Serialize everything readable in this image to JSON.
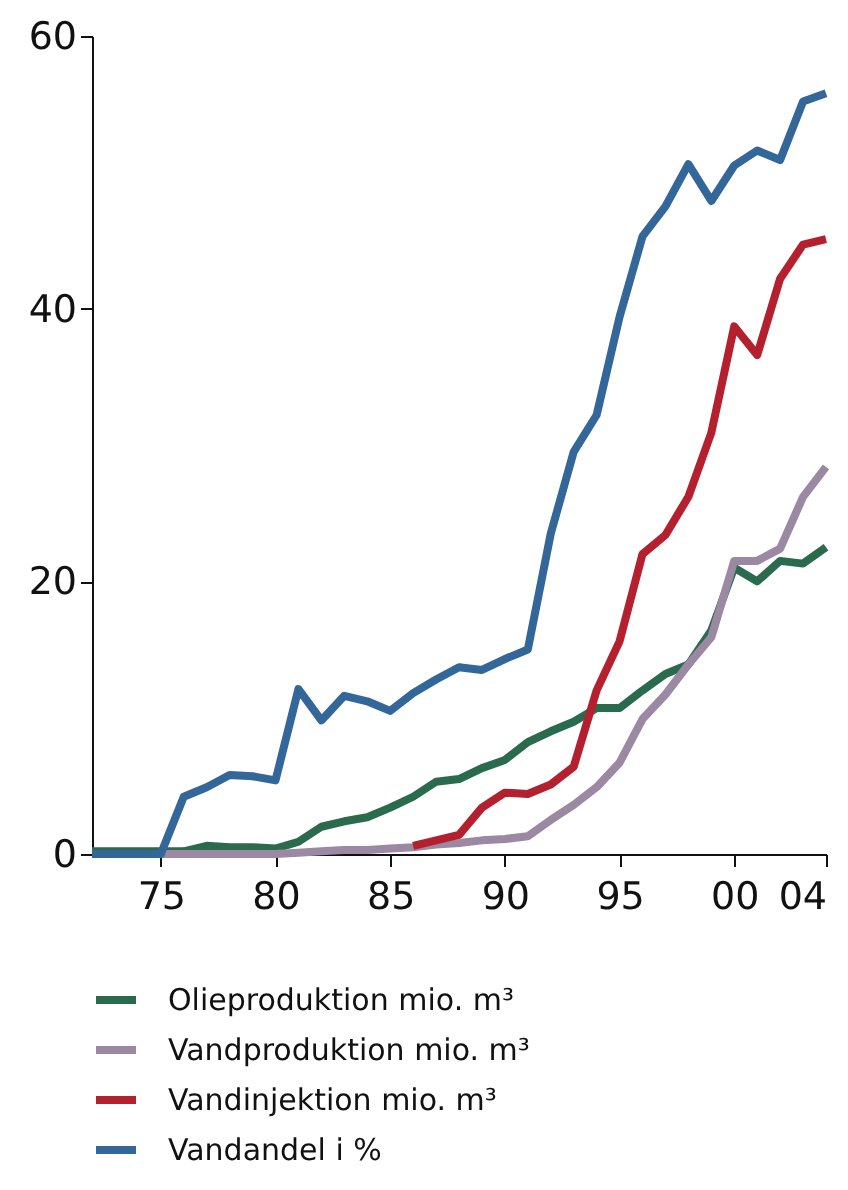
{
  "chart_data": {
    "type": "line",
    "x": [
      1972,
      1973,
      1974,
      1975,
      1976,
      1977,
      1978,
      1979,
      1980,
      1981,
      1982,
      1983,
      1984,
      1985,
      1986,
      1987,
      1988,
      1989,
      1990,
      1991,
      1992,
      1993,
      1994,
      1995,
      1996,
      1997,
      1998,
      1999,
      2000,
      2001,
      2002,
      2003,
      2004
    ],
    "series": [
      {
        "name": "Olieproduktion mio. m³",
        "color": "#2a6b4e",
        "values": [
          0.2,
          0.2,
          0.2,
          0.2,
          0.2,
          0.6,
          0.5,
          0.5,
          0.4,
          0.9,
          2.0,
          2.4,
          2.7,
          3.4,
          4.2,
          5.3,
          5.5,
          6.3,
          6.9,
          8.2,
          9.0,
          9.7,
          10.7,
          10.7,
          12.0,
          13.2,
          13.9,
          16.4,
          21.0,
          20.0,
          21.5,
          21.3,
          22.5
        ]
      },
      {
        "name": "Vandproduktion mio. m³",
        "color": "#9b88a2",
        "values": [
          null,
          null,
          0,
          0,
          0,
          0,
          0,
          0,
          0,
          0.1,
          0.2,
          0.3,
          0.3,
          0.4,
          0.5,
          0.7,
          0.8,
          1.0,
          1.1,
          1.3,
          2.5,
          3.6,
          4.9,
          6.7,
          9.9,
          11.7,
          13.9,
          15.9,
          21.5,
          21.5,
          22.4,
          26.2,
          28.4
        ]
      },
      {
        "name": "Vandinjektion mio. m³",
        "color": "#b5202e",
        "values": [
          null,
          null,
          null,
          null,
          null,
          null,
          null,
          null,
          null,
          null,
          null,
          null,
          null,
          null,
          0.6,
          1.0,
          1.4,
          3.4,
          4.5,
          4.4,
          5.1,
          6.4,
          12.0,
          15.6,
          22.0,
          23.4,
          26.2,
          30.9,
          38.7,
          36.6,
          42.2,
          44.7,
          45.1
        ]
      },
      {
        "name": "Vandandel i %",
        "color": "#336699",
        "values": [
          0,
          0,
          0,
          0,
          4.2,
          4.9,
          5.8,
          5.7,
          5.4,
          12.1,
          9.8,
          11.6,
          11.2,
          10.5,
          11.8,
          12.8,
          13.7,
          13.5,
          14.3,
          15.0,
          23.5,
          29.5,
          32.2,
          39.4,
          45.3,
          47.5,
          50.6,
          47.9,
          50.5,
          51.6,
          50.9,
          55.2,
          55.8
        ]
      }
    ],
    "xlim": [
      1972,
      2004
    ],
    "xticks": [
      {
        "value": 1975,
        "label": "75"
      },
      {
        "value": 1980,
        "label": "80"
      },
      {
        "value": 1985,
        "label": "85"
      },
      {
        "value": 1990,
        "label": "90"
      },
      {
        "value": 1995,
        "label": "95"
      },
      {
        "value": 2000,
        "label": "00"
      },
      {
        "value": 2004,
        "label": "04"
      }
    ],
    "ylim": [
      0,
      60
    ],
    "yticks": [
      0,
      20,
      40,
      60
    ],
    "grid": false,
    "legend": "bottom",
    "marker": "none",
    "line_style": "solid"
  }
}
